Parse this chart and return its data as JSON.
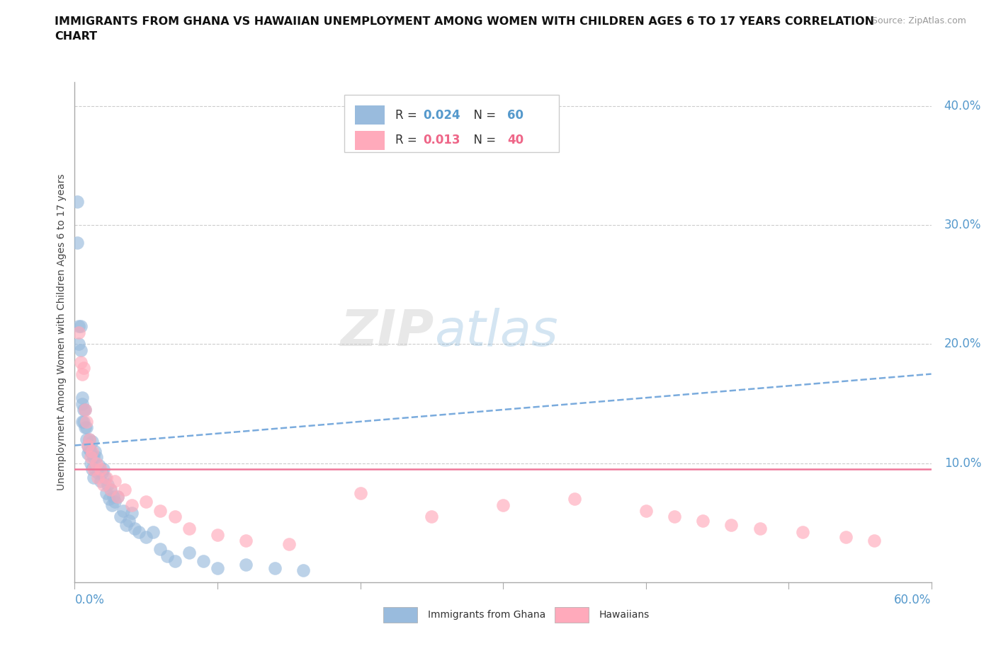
{
  "title": "IMMIGRANTS FROM GHANA VS HAWAIIAN UNEMPLOYMENT AMONG WOMEN WITH CHILDREN AGES 6 TO 17 YEARS CORRELATION\nCHART",
  "source": "Source: ZipAtlas.com",
  "ylabel": "Unemployment Among Women with Children Ages 6 to 17 years",
  "xlim": [
    0.0,
    0.6
  ],
  "ylim": [
    0.0,
    0.42
  ],
  "color_blue": "#99BBDD",
  "color_pink": "#FFAABB",
  "color_blue_text": "#5599CC",
  "color_pink_text": "#EE6688",
  "color_trendline_blue": "#7AABDD",
  "color_trendline_pink": "#EE7799",
  "watermark_color": "#DDDDDD",
  "R_blue": "0.024",
  "N_blue": "60",
  "R_pink": "0.013",
  "N_pink": "40",
  "blue_trend_x": [
    0.0,
    0.6
  ],
  "blue_trend_y": [
    0.115,
    0.175
  ],
  "pink_trend_y": [
    0.095,
    0.095
  ],
  "blue_x": [
    0.002,
    0.002,
    0.003,
    0.003,
    0.004,
    0.004,
    0.005,
    0.005,
    0.005,
    0.006,
    0.006,
    0.007,
    0.007,
    0.008,
    0.008,
    0.009,
    0.009,
    0.01,
    0.01,
    0.011,
    0.011,
    0.012,
    0.012,
    0.013,
    0.013,
    0.014,
    0.014,
    0.015,
    0.016,
    0.017,
    0.018,
    0.019,
    0.02,
    0.021,
    0.022,
    0.023,
    0.024,
    0.025,
    0.026,
    0.027,
    0.028,
    0.03,
    0.032,
    0.034,
    0.036,
    0.038,
    0.04,
    0.042,
    0.045,
    0.05,
    0.055,
    0.06,
    0.065,
    0.07,
    0.08,
    0.09,
    0.1,
    0.12,
    0.14,
    0.16
  ],
  "blue_y": [
    0.32,
    0.285,
    0.215,
    0.2,
    0.215,
    0.195,
    0.155,
    0.15,
    0.135,
    0.145,
    0.135,
    0.145,
    0.13,
    0.13,
    0.12,
    0.115,
    0.108,
    0.12,
    0.112,
    0.11,
    0.1,
    0.118,
    0.095,
    0.105,
    0.088,
    0.11,
    0.095,
    0.105,
    0.092,
    0.098,
    0.085,
    0.092,
    0.095,
    0.088,
    0.075,
    0.082,
    0.07,
    0.078,
    0.065,
    0.072,
    0.068,
    0.072,
    0.055,
    0.06,
    0.048,
    0.052,
    0.058,
    0.045,
    0.042,
    0.038,
    0.042,
    0.028,
    0.022,
    0.018,
    0.025,
    0.018,
    0.012,
    0.015,
    0.012,
    0.01
  ],
  "pink_x": [
    0.003,
    0.004,
    0.005,
    0.006,
    0.007,
    0.008,
    0.009,
    0.01,
    0.011,
    0.012,
    0.013,
    0.015,
    0.016,
    0.018,
    0.02,
    0.022,
    0.025,
    0.028,
    0.03,
    0.035,
    0.04,
    0.05,
    0.06,
    0.07,
    0.08,
    0.1,
    0.12,
    0.15,
    0.2,
    0.25,
    0.3,
    0.35,
    0.4,
    0.42,
    0.44,
    0.46,
    0.48,
    0.51,
    0.54,
    0.56
  ],
  "pink_y": [
    0.21,
    0.185,
    0.175,
    0.18,
    0.145,
    0.135,
    0.115,
    0.12,
    0.105,
    0.11,
    0.095,
    0.1,
    0.088,
    0.095,
    0.082,
    0.088,
    0.078,
    0.085,
    0.072,
    0.078,
    0.065,
    0.068,
    0.06,
    0.055,
    0.045,
    0.04,
    0.035,
    0.032,
    0.075,
    0.055,
    0.065,
    0.07,
    0.06,
    0.055,
    0.052,
    0.048,
    0.045,
    0.042,
    0.038,
    0.035
  ]
}
